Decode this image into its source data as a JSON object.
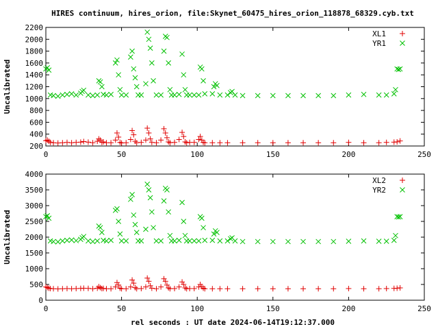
{
  "title": "HIRES continuum, hires_orion, file:Skynet_60475_hires_orion_118878_68329.cyb.txt",
  "xlabel": "rel seconds : UT date 2024-06-14T19:12:37.000",
  "colors": {
    "red": "#e00000",
    "green": "#00c000"
  },
  "chart_data": [
    {
      "type": "scatter",
      "ylabel": "Uncalibrated",
      "xlim": [
        0,
        250
      ],
      "ylim": [
        200,
        2200
      ],
      "xticks": [
        0,
        50,
        100,
        150,
        200,
        250
      ],
      "yticks": [
        200,
        400,
        600,
        800,
        1000,
        1200,
        1400,
        1600,
        1800,
        2000,
        2200
      ],
      "legend_position": "top-right",
      "series": [
        {
          "name": "XL1",
          "marker": "plus",
          "color": "#e00000",
          "x": [
            0,
            1,
            2,
            3,
            5,
            8,
            11,
            14,
            17,
            20,
            23,
            25,
            28,
            31,
            34,
            35,
            36,
            37,
            38,
            40,
            43,
            46,
            47,
            48,
            49,
            50,
            53,
            56,
            57,
            58,
            59,
            60,
            63,
            66,
            67,
            68,
            69,
            70,
            73,
            76,
            78,
            79,
            80,
            81,
            82,
            85,
            88,
            90,
            91,
            92,
            93,
            95,
            98,
            101,
            102,
            103,
            104,
            105,
            110,
            115,
            120,
            130,
            140,
            150,
            160,
            170,
            180,
            190,
            200,
            210,
            220,
            225,
            230,
            232,
            234
          ],
          "y": [
            290,
            300,
            280,
            260,
            255,
            250,
            255,
            260,
            255,
            260,
            265,
            275,
            265,
            255,
            280,
            320,
            300,
            260,
            270,
            255,
            255,
            300,
            420,
            350,
            260,
            250,
            255,
            310,
            460,
            390,
            280,
            255,
            260,
            300,
            500,
            420,
            320,
            260,
            255,
            300,
            490,
            420,
            340,
            270,
            255,
            260,
            310,
            430,
            360,
            270,
            255,
            260,
            260,
            310,
            360,
            300,
            260,
            255,
            255,
            255,
            255,
            255,
            255,
            255,
            255,
            255,
            255,
            255,
            260,
            255,
            255,
            260,
            265,
            270,
            285
          ]
        },
        {
          "name": "YR1",
          "marker": "x",
          "color": "#00c000",
          "x": [
            0,
            1,
            2,
            3,
            5,
            8,
            11,
            14,
            17,
            20,
            23,
            24,
            25,
            28,
            31,
            34,
            35,
            36,
            37,
            38,
            40,
            43,
            46,
            47,
            48,
            49,
            50,
            53,
            56,
            57,
            58,
            59,
            60,
            61,
            63,
            66,
            67,
            68,
            69,
            70,
            71,
            73,
            76,
            78,
            79,
            80,
            81,
            82,
            83,
            85,
            88,
            90,
            91,
            92,
            93,
            95,
            98,
            101,
            102,
            103,
            104,
            105,
            110,
            111,
            112,
            113,
            115,
            120,
            122,
            123,
            125,
            130,
            140,
            150,
            160,
            170,
            180,
            190,
            200,
            210,
            220,
            225,
            230,
            231,
            232,
            233,
            234
          ],
          "y": [
            1500,
            1520,
            1480,
            1060,
            1050,
            1040,
            1060,
            1070,
            1080,
            1060,
            1090,
            1120,
            1140,
            1060,
            1050,
            1060,
            1300,
            1280,
            1200,
            1070,
            1060,
            1070,
            1600,
            1650,
            1400,
            1150,
            1060,
            1060,
            1700,
            1800,
            1500,
            1350,
            1200,
            1060,
            1060,
            1250,
            2120,
            2000,
            1850,
            1600,
            1300,
            1060,
            1060,
            1800,
            2050,
            2030,
            1600,
            1150,
            1060,
            1060,
            1070,
            1750,
            1400,
            1150,
            1060,
            1060,
            1060,
            1060,
            1530,
            1500,
            1300,
            1080,
            1080,
            1200,
            1250,
            1220,
            1060,
            1060,
            1100,
            1120,
            1060,
            1050,
            1050,
            1050,
            1050,
            1050,
            1050,
            1050,
            1060,
            1070,
            1060,
            1060,
            1080,
            1150,
            1500,
            1490,
            1500
          ]
        }
      ]
    },
    {
      "type": "scatter",
      "ylabel": "Uncalibrated",
      "xlim": [
        0,
        250
      ],
      "ylim": [
        0,
        4000
      ],
      "xticks": [
        0,
        50,
        100,
        150,
        200,
        250
      ],
      "yticks": [
        0,
        500,
        1000,
        1500,
        2000,
        2500,
        3000,
        3500,
        4000
      ],
      "legend_position": "top-right",
      "series": [
        {
          "name": "XL2",
          "marker": "plus",
          "color": "#e00000",
          "x": [
            0,
            1,
            2,
            3,
            5,
            8,
            11,
            14,
            17,
            20,
            23,
            25,
            28,
            31,
            34,
            35,
            36,
            37,
            38,
            40,
            43,
            46,
            47,
            48,
            49,
            50,
            53,
            56,
            57,
            58,
            59,
            60,
            63,
            66,
            67,
            68,
            69,
            70,
            73,
            76,
            78,
            79,
            80,
            81,
            82,
            85,
            88,
            90,
            91,
            92,
            93,
            95,
            98,
            101,
            102,
            103,
            104,
            105,
            110,
            115,
            120,
            130,
            140,
            150,
            160,
            170,
            180,
            190,
            200,
            210,
            220,
            225,
            230,
            232,
            234
          ],
          "y": [
            420,
            400,
            380,
            370,
            365,
            360,
            365,
            370,
            365,
            370,
            375,
            380,
            375,
            365,
            380,
            430,
            400,
            370,
            375,
            365,
            365,
            420,
            560,
            480,
            380,
            365,
            365,
            420,
            640,
            540,
            400,
            365,
            370,
            420,
            700,
            600,
            460,
            380,
            365,
            420,
            680,
            600,
            480,
            390,
            365,
            370,
            420,
            580,
            500,
            390,
            365,
            370,
            370,
            420,
            500,
            430,
            380,
            365,
            365,
            365,
            365,
            365,
            365,
            365,
            365,
            365,
            365,
            365,
            370,
            365,
            365,
            370,
            375,
            380,
            390
          ]
        },
        {
          "name": "YR2",
          "marker": "x",
          "color": "#00c000",
          "x": [
            0,
            1,
            2,
            3,
            5,
            8,
            11,
            14,
            17,
            20,
            23,
            24,
            25,
            28,
            31,
            34,
            35,
            36,
            37,
            38,
            40,
            43,
            46,
            47,
            48,
            49,
            50,
            53,
            56,
            57,
            58,
            59,
            60,
            61,
            63,
            66,
            67,
            68,
            69,
            70,
            71,
            73,
            76,
            78,
            79,
            80,
            81,
            82,
            83,
            85,
            88,
            90,
            91,
            92,
            93,
            95,
            98,
            101,
            102,
            103,
            104,
            105,
            110,
            111,
            112,
            113,
            115,
            120,
            122,
            123,
            125,
            130,
            140,
            150,
            160,
            170,
            180,
            190,
            200,
            210,
            220,
            225,
            230,
            231,
            232,
            233,
            234
          ],
          "y": [
            2650,
            2680,
            2600,
            1880,
            1860,
            1850,
            1880,
            1900,
            1910,
            1890,
            1930,
            1980,
            2020,
            1880,
            1860,
            1880,
            2350,
            2300,
            2150,
            1900,
            1880,
            1900,
            2850,
            2900,
            2500,
            2100,
            1880,
            1880,
            3200,
            3350,
            2700,
            2400,
            2150,
            1880,
            1880,
            2250,
            3680,
            3500,
            3250,
            2800,
            2300,
            1880,
            1880,
            3150,
            3550,
            3500,
            2800,
            2050,
            1880,
            1880,
            1900,
            3100,
            2500,
            2050,
            1880,
            1880,
            1880,
            1880,
            2650,
            2600,
            2300,
            1900,
            1900,
            2100,
            2200,
            2150,
            1880,
            1880,
            1950,
            1980,
            1880,
            1860,
            1860,
            1860,
            1860,
            1860,
            1860,
            1860,
            1870,
            1880,
            1870,
            1870,
            1900,
            2050,
            2650,
            2640,
            2650
          ]
        }
      ]
    }
  ]
}
